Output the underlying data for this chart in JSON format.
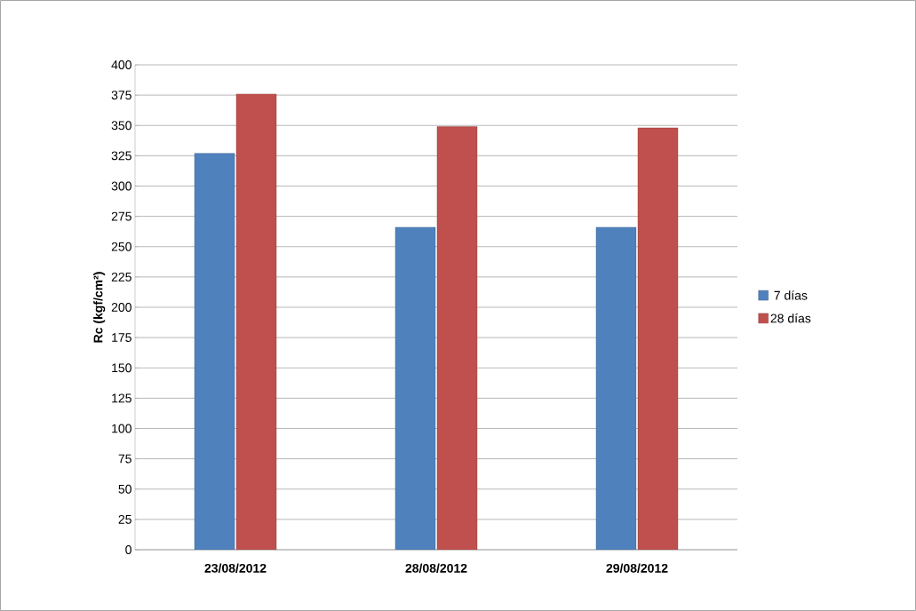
{
  "chart_data": {
    "type": "bar",
    "ylabel": "Rc (kgf/cm²)",
    "categories": [
      "23/08/2012",
      "28/08/2012",
      "29/08/2012"
    ],
    "series": [
      {
        "name": "7 días",
        "color": "#4f81bd",
        "values": [
          327,
          266,
          266
        ]
      },
      {
        "name": "28 días",
        "color": "#c0504d",
        "values": [
          376,
          349,
          348
        ]
      }
    ],
    "ylim": [
      0,
      400
    ],
    "yticks": [
      0,
      25,
      50,
      75,
      100,
      125,
      150,
      175,
      200,
      225,
      250,
      275,
      300,
      325,
      350,
      375,
      400
    ],
    "grid": "y",
    "legend": "right"
  }
}
